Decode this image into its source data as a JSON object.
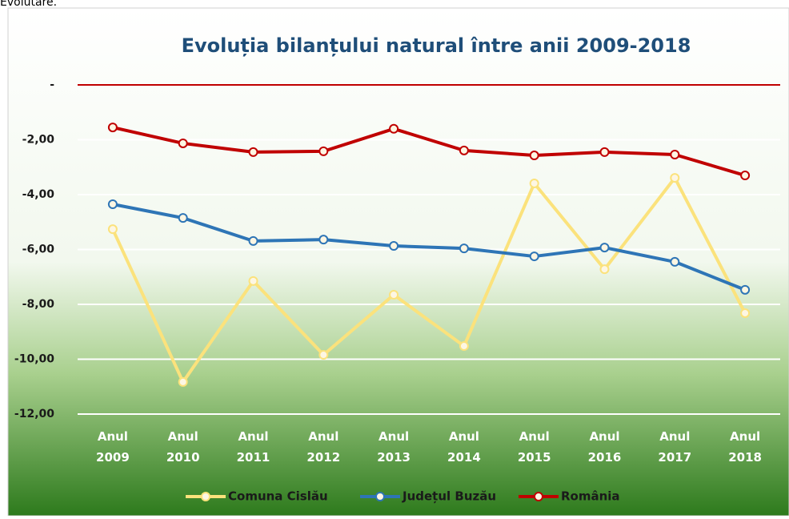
{
  "caption": "Evolutare.",
  "chart_data": {
    "type": "line",
    "title": "Evoluția bilanțului natural între anii 2009-2018",
    "categories": [
      "Anul 2009",
      "Anul 2010",
      "Anul 2011",
      "Anul 2012",
      "Anul 2013",
      "Anul 2014",
      "Anul 2015",
      "Anul 2016",
      "Anul 2017",
      "Anul 2018"
    ],
    "series": [
      {
        "name": "Comuna Cislău",
        "color": "#fbe27c",
        "values": [
          -5.26,
          -10.83,
          -7.15,
          -9.84,
          -7.65,
          -9.52,
          -3.59,
          -6.72,
          -3.39,
          -8.32
        ]
      },
      {
        "name": "Județul Buzău",
        "color": "#2e75b6",
        "values": [
          -4.35,
          -4.85,
          -5.69,
          -5.64,
          -5.87,
          -5.96,
          -6.25,
          -5.93,
          -6.45,
          -7.47
        ]
      },
      {
        "name": "România",
        "color": "#c00000",
        "values": [
          -1.55,
          -2.13,
          -2.45,
          -2.42,
          -1.6,
          -2.39,
          -2.57,
          -2.45,
          -2.54,
          -3.3
        ]
      }
    ],
    "ylim": [
      -12,
      0
    ],
    "yticks": [
      {
        "value": 0,
        "label": "-"
      },
      {
        "value": -2,
        "label": "-2,00"
      },
      {
        "value": -4,
        "label": "-4,00"
      },
      {
        "value": -6,
        "label": "-6,00"
      },
      {
        "value": -8,
        "label": "-8,00"
      },
      {
        "value": -10,
        "label": "-10,00"
      },
      {
        "value": -12,
        "label": "-12,00"
      }
    ],
    "grid": true,
    "legend": "bottom"
  }
}
